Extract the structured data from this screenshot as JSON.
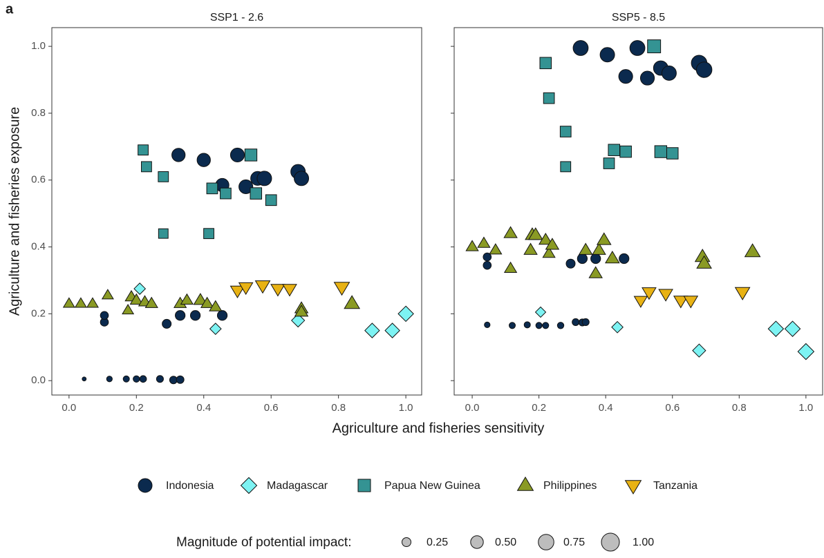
{
  "panel_tag": "a",
  "x_label": "Agriculture and fisheries sensitivity",
  "y_label": "Agriculture and fisheries exposure",
  "legend": [
    {
      "name": "Indonesia",
      "color": "#0b2a4e",
      "shape": "circle"
    },
    {
      "name": "Madagascar",
      "color": "#7df3f3",
      "shape": "diamond"
    },
    {
      "name": "Papua New Guinea",
      "color": "#349393",
      "shape": "square"
    },
    {
      "name": "Philippines",
      "color": "#8a9a24",
      "shape": "triangle"
    },
    {
      "name": "Tanzania",
      "color": "#e8b214",
      "shape": "triangle-down"
    }
  ],
  "size_legend": {
    "title": "Magnitude of potential impact:",
    "values": [
      {
        "value": 0.25,
        "label": "0.25"
      },
      {
        "value": 0.5,
        "label": "0.50"
      },
      {
        "value": 0.75,
        "label": "0.75"
      },
      {
        "value": 1,
        "label": "1.00"
      }
    ]
  },
  "chart_data": [
    {
      "type": "scatter",
      "title": "SSP1 - 2.6",
      "xlim": [
        -0.051,
        1.047
      ],
      "ylim": [
        -0.043,
        1.056
      ],
      "xticks": [
        {
          "value": 0,
          "label": "0.0"
        },
        {
          "value": 0.2,
          "label": "0.2"
        },
        {
          "value": 0.4,
          "label": "0.4"
        },
        {
          "value": 0.6,
          "label": "0.6"
        },
        {
          "value": 0.8,
          "label": "0.8"
        },
        {
          "value": 1,
          "label": "1.0"
        }
      ],
      "yticks": [
        {
          "value": 0,
          "label": "0.0"
        },
        {
          "value": 0.2,
          "label": "0.2"
        },
        {
          "value": 0.4,
          "label": "0.4"
        },
        {
          "value": 0.6,
          "label": "0.6"
        },
        {
          "value": 0.8,
          "label": "0.8"
        },
        {
          "value": 1,
          "label": "1.0"
        }
      ],
      "series": [
        {
          "x": [
            0.045,
            0.12,
            0.17,
            0.2,
            0.22,
            0.27,
            0.31,
            0.33,
            0.105,
            0.105,
            0.29,
            0.33,
            0.375,
            0.455,
            0.325,
            0.4,
            0.5,
            0.455,
            0.525,
            0.56,
            0.58,
            0.68,
            0.69
          ],
          "values": [
            0.005,
            0.005,
            0.005,
            0.005,
            0.005,
            0.005,
            0.002,
            0.003,
            0.175,
            0.195,
            0.17,
            0.195,
            0.195,
            0.195,
            0.675,
            0.66,
            0.675,
            0.585,
            0.58,
            0.605,
            0.605,
            0.625,
            0.605
          ],
          "sizes": [
            0.05,
            0.1,
            0.12,
            0.13,
            0.14,
            0.15,
            0.18,
            0.18,
            0.2,
            0.2,
            0.25,
            0.3,
            0.3,
            0.3,
            0.55,
            0.55,
            0.6,
            0.55,
            0.6,
            0.6,
            0.65,
            0.65,
            0.65
          ]
        },
        {
          "x": [
            0.21,
            0.435,
            0.68,
            0.9,
            0.96,
            1.0
          ],
          "values": [
            0.275,
            0.155,
            0.18,
            0.15,
            0.15,
            0.2
          ],
          "sizes": [
            0.3,
            0.3,
            0.4,
            0.5,
            0.5,
            0.55
          ]
        },
        {
          "x": [
            0.22,
            0.23,
            0.28,
            0.28,
            0.415,
            0.425,
            0.465,
            0.54,
            0.555,
            0.6
          ],
          "values": [
            0.69,
            0.64,
            0.61,
            0.44,
            0.44,
            0.575,
            0.56,
            0.675,
            0.56,
            0.54
          ],
          "sizes": [
            0.4,
            0.4,
            0.4,
            0.35,
            0.4,
            0.45,
            0.45,
            0.55,
            0.5,
            0.45
          ]
        },
        {
          "x": [
            0.0,
            0.035,
            0.07,
            0.115,
            0.175,
            0.185,
            0.2,
            0.225,
            0.245,
            0.33,
            0.35,
            0.39,
            0.41,
            0.435,
            0.69,
            0.69,
            0.84
          ],
          "values": [
            0.23,
            0.23,
            0.23,
            0.255,
            0.21,
            0.25,
            0.24,
            0.235,
            0.23,
            0.23,
            0.24,
            0.24,
            0.23,
            0.22,
            0.215,
            0.205,
            0.23
          ],
          "sizes": [
            0.3,
            0.3,
            0.3,
            0.3,
            0.3,
            0.35,
            0.35,
            0.35,
            0.35,
            0.35,
            0.35,
            0.4,
            0.35,
            0.35,
            0.4,
            0.4,
            0.55
          ]
        },
        {
          "x": [
            0.5,
            0.525,
            0.575,
            0.62,
            0.655,
            0.81
          ],
          "values": [
            0.27,
            0.28,
            0.285,
            0.275,
            0.275,
            0.28
          ],
          "sizes": [
            0.45,
            0.45,
            0.5,
            0.45,
            0.45,
            0.55
          ]
        }
      ]
    },
    {
      "type": "scatter",
      "title": "SSP5 - 8.5",
      "xlim": [
        -0.054,
        1.05
      ],
      "ylim": [
        -0.043,
        1.056
      ],
      "xticks": [
        {
          "value": 0,
          "label": "0.0"
        },
        {
          "value": 0.2,
          "label": "0.2"
        },
        {
          "value": 0.4,
          "label": "0.4"
        },
        {
          "value": 0.6,
          "label": "0.6"
        },
        {
          "value": 0.8,
          "label": "0.8"
        },
        {
          "value": 1,
          "label": "1.0"
        }
      ],
      "series": [
        {
          "x": [
            0.045,
            0.12,
            0.165,
            0.2,
            0.22,
            0.265,
            0.31,
            0.33,
            0.34,
            0.045,
            0.045,
            0.295,
            0.33,
            0.37,
            0.455,
            0.325,
            0.405,
            0.46,
            0.495,
            0.525,
            0.565,
            0.59,
            0.68,
            0.695
          ],
          "values": [
            0.167,
            0.165,
            0.167,
            0.165,
            0.165,
            0.165,
            0.175,
            0.174,
            0.175,
            0.37,
            0.345,
            0.35,
            0.365,
            0.365,
            0.365,
            0.995,
            0.975,
            0.91,
            0.995,
            0.905,
            0.935,
            0.92,
            0.95,
            0.93
          ],
          "sizes": [
            0.1,
            0.12,
            0.12,
            0.12,
            0.12,
            0.13,
            0.15,
            0.15,
            0.15,
            0.2,
            0.2,
            0.25,
            0.3,
            0.3,
            0.3,
            0.7,
            0.65,
            0.6,
            0.7,
            0.6,
            0.65,
            0.65,
            0.75,
            0.75
          ]
        },
        {
          "x": [
            0.205,
            0.435,
            0.68,
            0.91,
            0.96,
            1.0
          ],
          "values": [
            0.205,
            0.16,
            0.09,
            0.155,
            0.155,
            0.087
          ],
          "sizes": [
            0.25,
            0.3,
            0.4,
            0.55,
            0.55,
            0.6
          ]
        },
        {
          "x": [
            0.22,
            0.23,
            0.28,
            0.28,
            0.41,
            0.425,
            0.46,
            0.565,
            0.6,
            0.545
          ],
          "values": [
            0.95,
            0.845,
            0.745,
            0.64,
            0.65,
            0.69,
            0.685,
            0.685,
            0.68,
            1.0
          ],
          "sizes": [
            0.5,
            0.45,
            0.45,
            0.4,
            0.45,
            0.5,
            0.5,
            0.55,
            0.5,
            0.65
          ]
        },
        {
          "x": [
            0.0,
            0.035,
            0.07,
            0.115,
            0.115,
            0.175,
            0.18,
            0.19,
            0.22,
            0.23,
            0.24,
            0.34,
            0.37,
            0.38,
            0.395,
            0.42,
            0.69,
            0.695,
            0.84
          ],
          "values": [
            0.4,
            0.41,
            0.39,
            0.44,
            0.335,
            0.39,
            0.435,
            0.435,
            0.42,
            0.38,
            0.405,
            0.39,
            0.32,
            0.39,
            0.42,
            0.365,
            0.37,
            0.35,
            0.385
          ],
          "sizes": [
            0.35,
            0.35,
            0.35,
            0.4,
            0.35,
            0.4,
            0.45,
            0.45,
            0.4,
            0.35,
            0.4,
            0.4,
            0.4,
            0.4,
            0.45,
            0.45,
            0.5,
            0.5,
            0.55
          ]
        },
        {
          "x": [
            0.505,
            0.53,
            0.58,
            0.625,
            0.655,
            0.81
          ],
          "values": [
            0.24,
            0.265,
            0.26,
            0.24,
            0.24,
            0.265
          ],
          "sizes": [
            0.4,
            0.45,
            0.45,
            0.45,
            0.45,
            0.5
          ]
        }
      ]
    }
  ]
}
